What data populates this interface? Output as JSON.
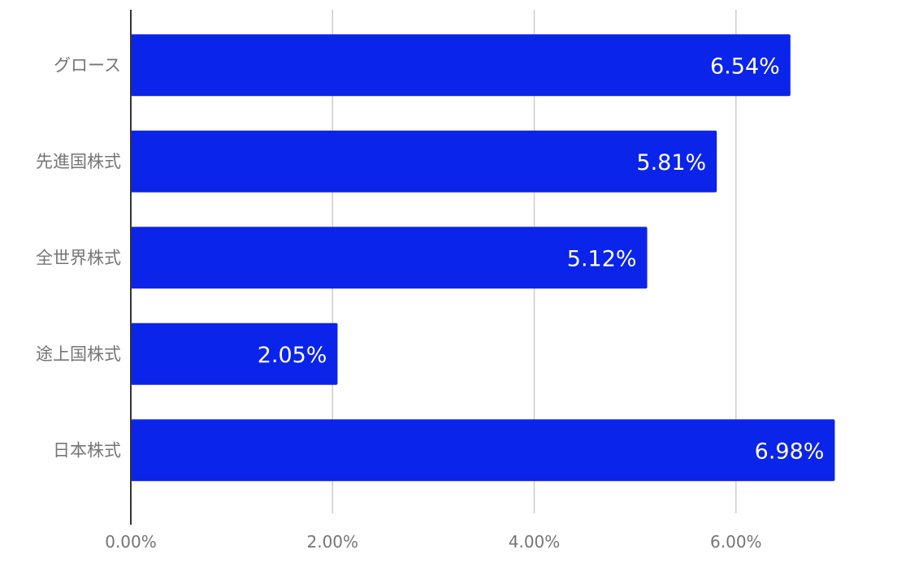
{
  "chart_data": {
    "type": "bar",
    "orientation": "horizontal",
    "title": "",
    "xlabel": "",
    "ylabel": "",
    "categories": [
      "グロース",
      "先進国株式",
      "全世界株式",
      "途上国株式",
      "日本株式"
    ],
    "values": [
      6.54,
      5.81,
      5.12,
      2.05,
      6.98
    ],
    "data_labels": [
      "6.54%",
      "5.81%",
      "5.12%",
      "2.05%",
      "6.98%"
    ],
    "xlim": [
      0,
      7.5
    ],
    "x_ticks": [
      0,
      2,
      4,
      6
    ],
    "x_tick_labels": [
      "0.00%",
      "2.00%",
      "4.00%",
      "6.00%"
    ],
    "grid": true,
    "legend": "none",
    "colors": {
      "bar": "#0a24ea",
      "grid": "#cccccc",
      "axis": "#333333",
      "label_text": "#757575",
      "data_label_text": "#ffffff"
    }
  }
}
